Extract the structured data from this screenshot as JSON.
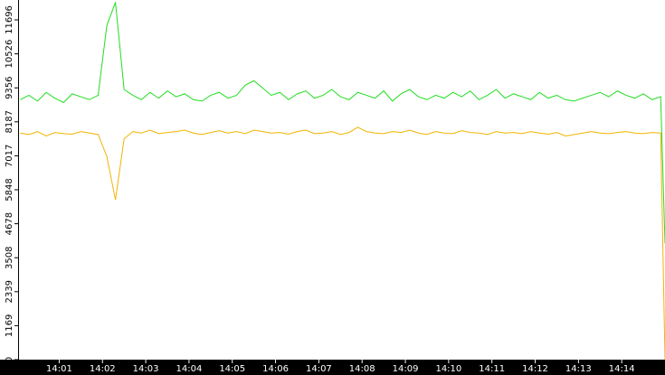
{
  "chart_data": {
    "type": "line",
    "x": [
      0.1,
      0.3,
      0.5,
      0.7,
      0.9,
      1.1,
      1.3,
      1.5,
      1.7,
      1.9,
      2.1,
      2.3,
      2.5,
      2.7,
      2.9,
      3.1,
      3.3,
      3.5,
      3.7,
      3.9,
      4.1,
      4.3,
      4.5,
      4.7,
      4.9,
      5.1,
      5.3,
      5.5,
      5.7,
      5.9,
      6.1,
      6.3,
      6.5,
      6.7,
      6.9,
      7.1,
      7.3,
      7.5,
      7.7,
      7.9,
      8.1,
      8.3,
      8.5,
      8.7,
      8.9,
      9.1,
      9.3,
      9.5,
      9.7,
      9.9,
      10.1,
      10.3,
      10.5,
      10.7,
      10.9,
      11.1,
      11.3,
      11.5,
      11.7,
      11.9,
      12.1,
      12.3,
      12.5,
      12.7,
      12.9,
      13.1,
      13.3,
      13.5,
      13.7,
      13.9,
      14.1,
      14.3,
      14.5,
      14.7,
      14.9,
      15.0
    ],
    "series": [
      {
        "color": "#22dd22",
        "values": [
          8950,
          9100,
          8900,
          9200,
          9000,
          8850,
          9150,
          9050,
          8950,
          9100,
          11500,
          12300,
          9300,
          9100,
          8950,
          9200,
          9000,
          9250,
          9050,
          9150,
          8950,
          8900,
          9100,
          9200,
          9000,
          9100,
          9450,
          9600,
          9350,
          9100,
          9200,
          8950,
          9150,
          9250,
          9000,
          9100,
          9300,
          9050,
          8950,
          9200,
          9100,
          9000,
          9250,
          8900,
          9150,
          9300,
          9050,
          8950,
          9100,
          9000,
          9200,
          9050,
          9250,
          8950,
          9100,
          9300,
          9000,
          9150,
          9050,
          8950,
          9200,
          9000,
          9100,
          8950,
          8900,
          9000,
          9100,
          9200,
          9050,
          9250,
          9100,
          9000,
          9150,
          8950,
          9050,
          4000
        ]
      },
      {
        "color": "#f0b400",
        "values": [
          7800,
          7750,
          7850,
          7700,
          7820,
          7780,
          7760,
          7850,
          7800,
          7750,
          7000,
          5500,
          7600,
          7850,
          7800,
          7900,
          7780,
          7820,
          7850,
          7900,
          7800,
          7750,
          7820,
          7880,
          7800,
          7850,
          7780,
          7900,
          7850,
          7800,
          7820,
          7760,
          7850,
          7900,
          7780,
          7800,
          7850,
          7750,
          7820,
          8000,
          7850,
          7800,
          7780,
          7850,
          7820,
          7900,
          7800,
          7750,
          7850,
          7800,
          7780,
          7880,
          7820,
          7800,
          7750,
          7850,
          7800,
          7820,
          7780,
          7850,
          7800,
          7760,
          7820,
          7700,
          7750,
          7800,
          7850,
          7800,
          7780,
          7820,
          7850,
          7800,
          7780,
          7820,
          7800,
          0
        ]
      }
    ],
    "xlim": [
      0.05,
      15.0
    ],
    "xticks": [
      {
        "value": 1,
        "label": "14:01"
      },
      {
        "value": 2,
        "label": "14:02"
      },
      {
        "value": 3,
        "label": "14:03"
      },
      {
        "value": 4,
        "label": "14:04"
      },
      {
        "value": 5,
        "label": "14:05"
      },
      {
        "value": 6,
        "label": "14:06"
      },
      {
        "value": 7,
        "label": "14:07"
      },
      {
        "value": 8,
        "label": "14:08"
      },
      {
        "value": 9,
        "label": "14:09"
      },
      {
        "value": 10,
        "label": "14:10"
      },
      {
        "value": 11,
        "label": "14:11"
      },
      {
        "value": 12,
        "label": "14:12"
      },
      {
        "value": 13,
        "label": "14:13"
      },
      {
        "value": 14,
        "label": "14:14"
      }
    ],
    "ylim": [
      0,
      12380
    ],
    "yticks": [
      0,
      1169,
      2339,
      3508,
      4678,
      5848,
      7017,
      8187,
      9356,
      10526,
      11696
    ]
  }
}
